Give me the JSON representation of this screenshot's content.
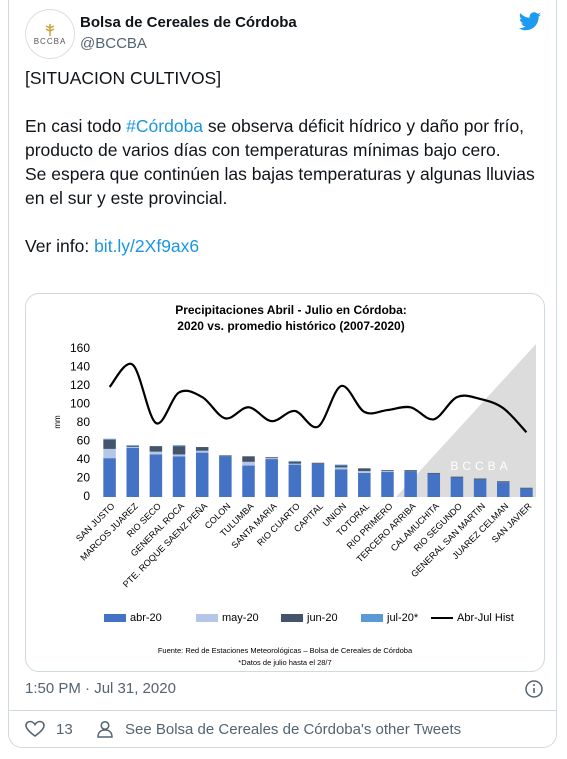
{
  "tweet": {
    "name": "Bolsa de Cereales de Córdoba",
    "handle": "@BCCBA",
    "logo": "BCCBA",
    "p1": "[SITUACION CULTIVOS]",
    "p2_before": "En casi todo ",
    "p2_hashtag": "#Córdoba",
    "p2_after": " se observa déficit hídrico y daño por frío, producto de varios días con temperaturas mínimas bajo cero.",
    "p3": "Se espera que continúen las bajas temperaturas y algunas lluvias en el sur y este provincial.",
    "p4_label": "Ver info: ",
    "p4_link": "bit.ly/2Xf9ax6",
    "timestamp": "1:50 PM · Jul 31, 2020",
    "likes": "13",
    "other_tweets": "See Bolsa de Cereales de Córdoba's other Tweets"
  },
  "chart_data": {
    "type": "bar",
    "stacked": true,
    "title": [
      "Precipitaciones Abril - Julio en Córdoba:",
      "2020 vs. promedio histórico (2007-2020)"
    ],
    "y_label": "mm",
    "categories": [
      "SAN JUSTO",
      "MARCOS JUAREZ",
      "RIO SECO",
      "GENERAL ROCA",
      "PTE. ROQUE SAENZ PEÑA",
      "COLON",
      "TULUMBA",
      "SANTA MARIA",
      "RIO CUARTO",
      "CAPITAL",
      "UNION",
      "TOTORAL",
      "RIO PRIMERO",
      "TERCERO ARRIBA",
      "CALAMUCHITA",
      "RIO SEGUNDO",
      "GENERAL SAN MARTIN",
      "JUAREZ CELMAN",
      "SAN JAVIER"
    ],
    "series": [
      {
        "name": "abr-20",
        "color": "#4472c4",
        "values": [
          42,
          53,
          46,
          44,
          48,
          44,
          34,
          41,
          35,
          36,
          30,
          26,
          27,
          28,
          25,
          21,
          19,
          16,
          9
        ]
      },
      {
        "name": "may-20",
        "color": "#b4c7e7",
        "values": [
          10,
          1,
          3,
          2,
          2,
          0,
          4,
          1,
          1,
          0,
          2,
          2,
          1,
          0,
          0,
          0,
          0,
          0,
          0
        ]
      },
      {
        "name": "jun-20",
        "color": "#44546a",
        "values": [
          10,
          1,
          6,
          9,
          4,
          1,
          6,
          1,
          2,
          1,
          2,
          3,
          1,
          1,
          1,
          1,
          1,
          1,
          1
        ]
      },
      {
        "name": "jul-20*",
        "color": "#5b9bd5",
        "values": [
          1,
          1,
          0,
          1,
          0,
          0,
          0,
          0,
          1,
          0,
          1,
          0,
          0,
          0,
          0,
          0,
          0,
          0,
          0
        ]
      },
      {
        "name": "Abr-Jul Hist",
        "type": "line",
        "color": "#000000",
        "values": [
          119,
          143,
          80,
          113,
          108,
          85,
          97,
          82,
          93,
          76,
          120,
          92,
          94,
          97,
          84,
          108,
          106,
          96,
          70
        ]
      }
    ],
    "ylim": [
      0,
      160
    ],
    "yticks": [
      0,
      20,
      40,
      60,
      80,
      100,
      120,
      140,
      160
    ],
    "grid": false,
    "legend": "bottom",
    "source": "Fuente: Red de Estaciones Meteorológicas – Bolsa de Cereales de Córdoba",
    "note": "*Datos de julio hasta el 28/7"
  }
}
